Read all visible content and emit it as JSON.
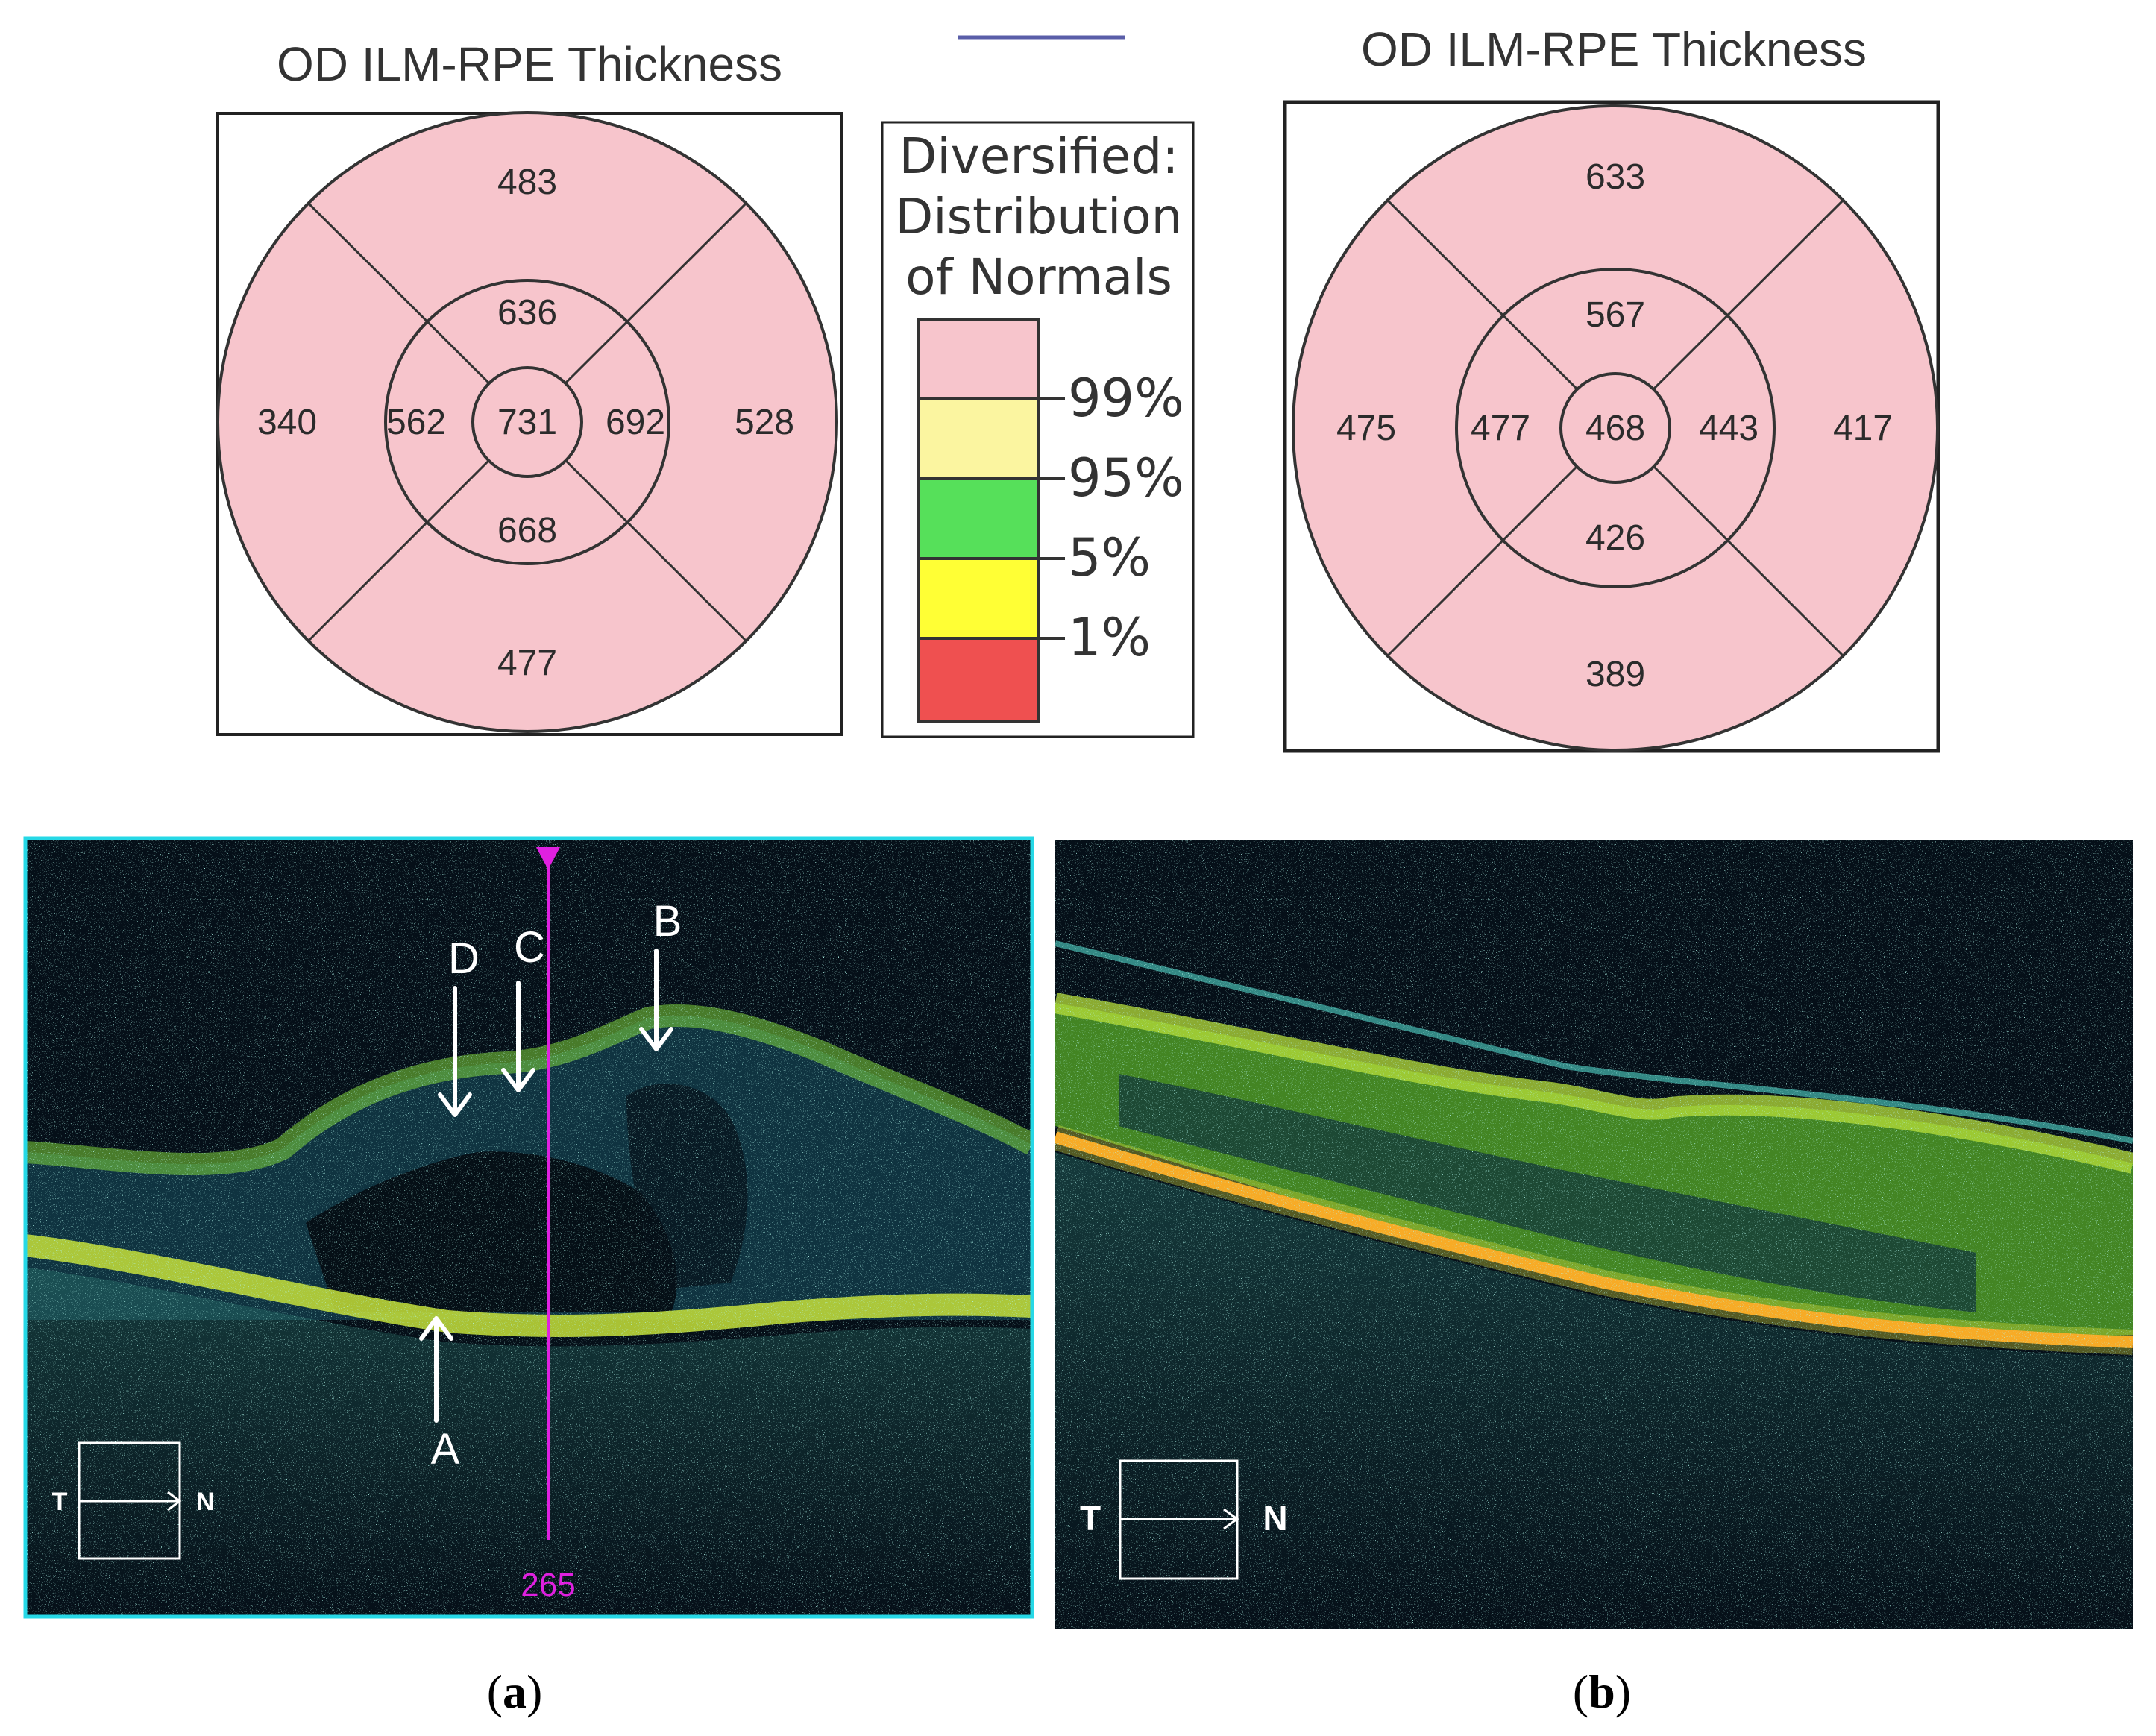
{
  "theme": {
    "sector_pink": "#f7c5cc",
    "legend_colors": [
      "#f7c5cc",
      "#fbf5a0",
      "#56e05a",
      "#ffff35",
      "#ef5050"
    ],
    "oct_bg": "#050f18",
    "oct_border": "#26d8e6",
    "position_line": "#e020e0"
  },
  "panel_a": {
    "map": {
      "title": "OD ILM-RPE Thickness",
      "values": {
        "outer_superior": "483",
        "outer_temporal": "340",
        "outer_nasal": "528",
        "outer_inferior": "477",
        "inner_superior": "636",
        "inner_temporal": "562",
        "inner_nasal": "692",
        "inner_inferior": "668",
        "center": "731"
      }
    },
    "scan": {
      "labels": {
        "A": "A",
        "B": "B",
        "C": "C",
        "D": "D"
      },
      "orientation": {
        "left": "T",
        "right": "N"
      },
      "position_value": "265"
    },
    "caption": {
      "open": "(",
      "letter": "a",
      "close": ")"
    }
  },
  "legend": {
    "title_lines": [
      "Diversified:",
      "Distribution",
      "of Normals"
    ],
    "percentiles": [
      "99%",
      "95%",
      "5%",
      "1%"
    ]
  },
  "panel_b": {
    "map": {
      "title": "OD ILM-RPE Thickness",
      "values": {
        "outer_superior": "633",
        "outer_temporal": "475",
        "outer_nasal": "417",
        "outer_inferior": "389",
        "inner_superior": "567",
        "inner_temporal": "477",
        "inner_nasal": "443",
        "inner_inferior": "426",
        "center": "468"
      }
    },
    "scan": {
      "orientation": {
        "left": "T",
        "right": "N"
      }
    },
    "caption": {
      "open": "(",
      "letter": "b",
      "close": ")"
    }
  }
}
